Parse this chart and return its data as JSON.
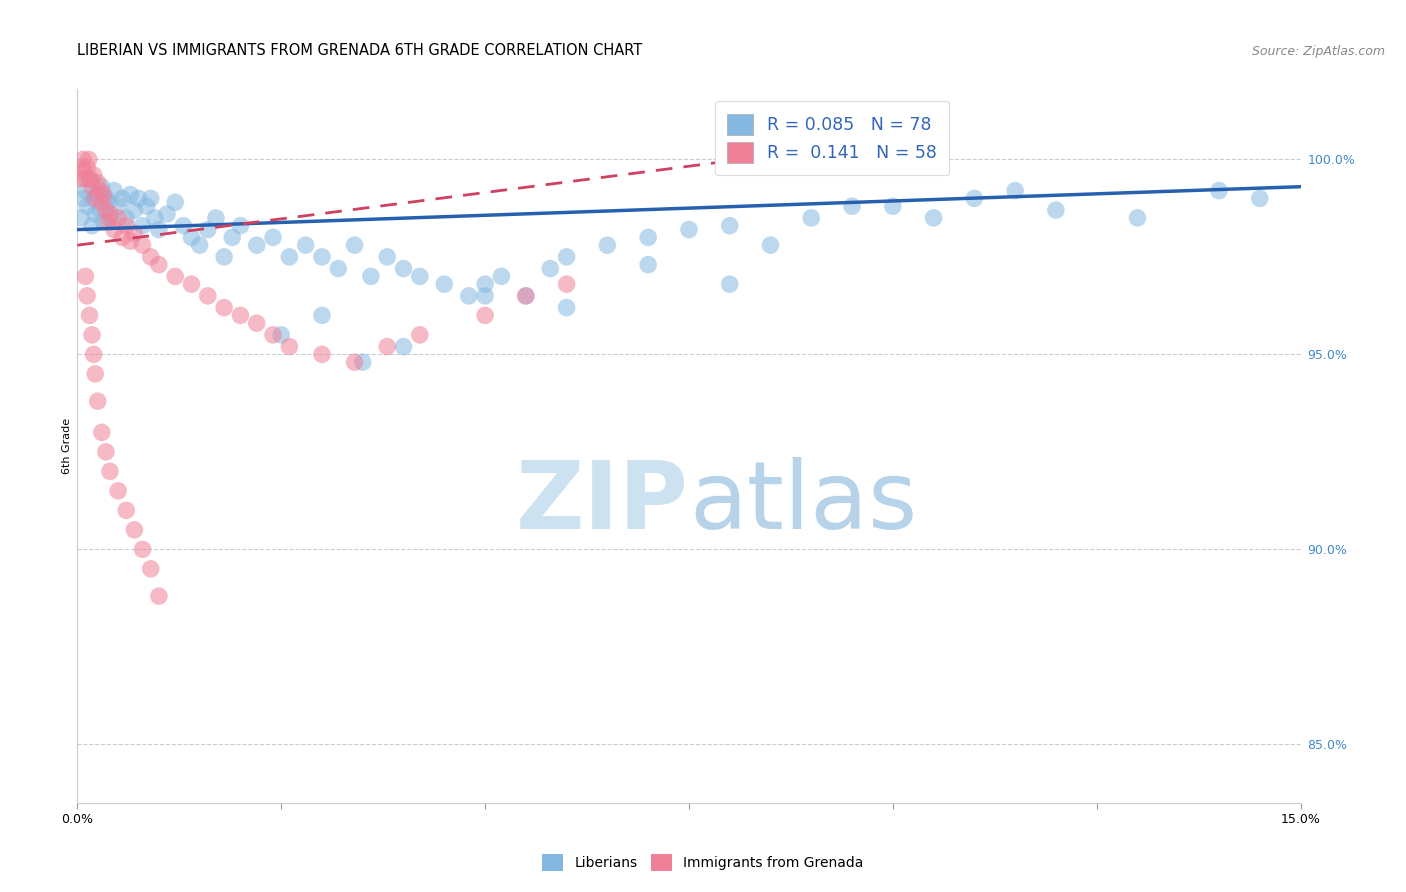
{
  "title": "LIBERIAN VS IMMIGRANTS FROM GRENADA 6TH GRADE CORRELATION CHART",
  "source": "Source: ZipAtlas.com",
  "ylabel": "6th Grade",
  "y_ticks": [
    85.0,
    90.0,
    95.0,
    100.0
  ],
  "xmin": 0.0,
  "xmax": 15.0,
  "ymin": 83.5,
  "ymax": 101.8,
  "blue_scatter_x": [
    0.05,
    0.08,
    0.1,
    0.12,
    0.15,
    0.18,
    0.2,
    0.22,
    0.25,
    0.28,
    0.3,
    0.32,
    0.35,
    0.38,
    0.4,
    0.45,
    0.5,
    0.55,
    0.6,
    0.65,
    0.7,
    0.75,
    0.8,
    0.85,
    0.9,
    0.95,
    1.0,
    1.1,
    1.2,
    1.3,
    1.4,
    1.5,
    1.6,
    1.7,
    1.8,
    1.9,
    2.0,
    2.2,
    2.4,
    2.6,
    2.8,
    3.0,
    3.2,
    3.4,
    3.6,
    3.8,
    4.0,
    4.2,
    4.5,
    4.8,
    5.0,
    5.2,
    5.5,
    5.8,
    6.0,
    6.5,
    7.0,
    7.5,
    8.0,
    8.5,
    9.0,
    9.5,
    10.0,
    10.5,
    11.0,
    11.5,
    12.0,
    13.0,
    14.0,
    14.5,
    2.5,
    3.0,
    3.5,
    4.0,
    5.0,
    6.0,
    7.0,
    8.0
  ],
  "blue_scatter_y": [
    98.5,
    99.0,
    99.2,
    98.8,
    99.5,
    98.3,
    99.0,
    98.6,
    99.1,
    98.7,
    99.3,
    98.4,
    99.0,
    98.9,
    98.5,
    99.2,
    98.8,
    99.0,
    98.5,
    99.1,
    98.7,
    99.0,
    98.3,
    98.8,
    99.0,
    98.5,
    98.2,
    98.6,
    98.9,
    98.3,
    98.0,
    97.8,
    98.2,
    98.5,
    97.5,
    98.0,
    98.3,
    97.8,
    98.0,
    97.5,
    97.8,
    97.5,
    97.2,
    97.8,
    97.0,
    97.5,
    97.2,
    97.0,
    96.8,
    96.5,
    96.8,
    97.0,
    96.5,
    97.2,
    97.5,
    97.8,
    98.0,
    98.2,
    98.3,
    97.8,
    98.5,
    98.8,
    98.8,
    98.5,
    99.0,
    99.2,
    98.7,
    98.5,
    99.2,
    99.0,
    95.5,
    96.0,
    94.8,
    95.2,
    96.5,
    96.2,
    97.3,
    96.8
  ],
  "pink_scatter_x": [
    0.03,
    0.05,
    0.07,
    0.08,
    0.1,
    0.12,
    0.14,
    0.16,
    0.18,
    0.2,
    0.22,
    0.25,
    0.28,
    0.3,
    0.32,
    0.35,
    0.38,
    0.4,
    0.45,
    0.5,
    0.55,
    0.6,
    0.65,
    0.7,
    0.8,
    0.9,
    1.0,
    1.2,
    1.4,
    1.6,
    1.8,
    2.0,
    2.2,
    2.4,
    2.6,
    3.0,
    3.4,
    3.8,
    4.2,
    5.0,
    5.5,
    6.0,
    0.1,
    0.12,
    0.15,
    0.18,
    0.2,
    0.22,
    0.25,
    0.3,
    0.35,
    0.4,
    0.5,
    0.6,
    0.7,
    0.8,
    0.9,
    1.0
  ],
  "pink_scatter_y": [
    99.5,
    99.8,
    100.0,
    99.7,
    99.5,
    99.8,
    100.0,
    99.5,
    99.3,
    99.6,
    99.0,
    99.4,
    99.2,
    98.9,
    99.1,
    98.7,
    98.4,
    98.6,
    98.2,
    98.5,
    98.0,
    98.3,
    97.9,
    98.1,
    97.8,
    97.5,
    97.3,
    97.0,
    96.8,
    96.5,
    96.2,
    96.0,
    95.8,
    95.5,
    95.2,
    95.0,
    94.8,
    95.2,
    95.5,
    96.0,
    96.5,
    96.8,
    97.0,
    96.5,
    96.0,
    95.5,
    95.0,
    94.5,
    93.8,
    93.0,
    92.5,
    92.0,
    91.5,
    91.0,
    90.5,
    90.0,
    89.5,
    88.8
  ],
  "blue_line_x0": 0.0,
  "blue_line_x1": 15.0,
  "blue_line_y0": 98.2,
  "blue_line_y1": 99.3,
  "pink_line_x0": 0.0,
  "pink_line_x1": 10.0,
  "pink_line_y0": 97.8,
  "pink_line_y1": 100.5,
  "blue_color": "#85b8e0",
  "pink_color": "#f08098",
  "blue_line_color": "#2860b0",
  "pink_line_color": "#d04060",
  "watermark_zip_color": "#c8dff0",
  "watermark_atlas_color": "#b0cfe8",
  "title_fontsize": 10.5,
  "source_fontsize": 9,
  "axis_label_fontsize": 8,
  "tick_fontsize": 9,
  "legend_fontsize": 12.5
}
